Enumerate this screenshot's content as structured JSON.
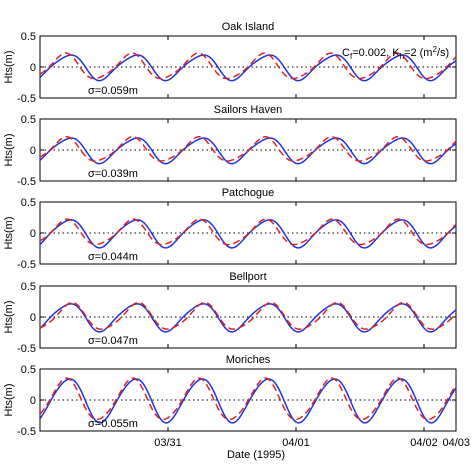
{
  "figure": {
    "xlabel": "Date (1995)",
    "annotation": {
      "c_prefix": "C",
      "c_sub": "f",
      "c_value": "=0.002, K",
      "k_sub": "h",
      "k_value": "=2 (m",
      "k_exp": "2",
      "k_unit": "/s)"
    }
  },
  "chart_data": [
    {
      "type": "line",
      "title": "Oak Island",
      "ylabel": "Hts(m)",
      "ylim": [
        -0.5,
        0.5
      ],
      "yticks": [
        "0.5",
        "0",
        "-0.5"
      ],
      "sigma": "σ=0.059m",
      "amp_obs": 0.2,
      "amp_model": 0.2,
      "model_phase_days": -0.03,
      "zero_reference": 0,
      "series": [
        {
          "style": "solid",
          "color": "#2233dd"
        },
        {
          "style": "dashed",
          "color": "#dd2222"
        }
      ]
    },
    {
      "type": "line",
      "title": "Sailors Haven",
      "ylabel": "Hts(m)",
      "ylim": [
        -0.5,
        0.5
      ],
      "yticks": [
        "0.5",
        "0",
        "-0.5"
      ],
      "sigma": "σ=0.039m",
      "amp_obs": 0.2,
      "amp_model": 0.19,
      "model_phase_days": -0.025,
      "zero_reference": 0,
      "series": [
        {
          "style": "solid",
          "color": "#2233dd"
        },
        {
          "style": "dashed",
          "color": "#dd2222"
        }
      ]
    },
    {
      "type": "line",
      "title": "Patchogue",
      "ylabel": "Hts(m)",
      "ylim": [
        -0.5,
        0.5
      ],
      "yticks": [
        "0.5",
        "0",
        "-0.5"
      ],
      "sigma": "σ=0.044m",
      "amp_obs": 0.22,
      "amp_model": 0.2,
      "model_phase_days": -0.02,
      "zero_reference": 0,
      "series": [
        {
          "style": "solid",
          "color": "#2233dd"
        },
        {
          "style": "dashed",
          "color": "#dd2222"
        }
      ]
    },
    {
      "type": "line",
      "title": "Bellport",
      "ylabel": "Hts(m)",
      "ylim": [
        -0.5,
        0.5
      ],
      "yticks": [
        "0.5",
        "0",
        "-0.5"
      ],
      "sigma": "σ=0.047m",
      "amp_obs": 0.22,
      "amp_model": 0.21,
      "model_phase_days": 0.02,
      "zero_reference": 0,
      "series": [
        {
          "style": "solid",
          "color": "#2233dd"
        },
        {
          "style": "dashed",
          "color": "#dd2222"
        }
      ]
    },
    {
      "type": "line",
      "title": "Moriches",
      "ylabel": "Hts(m)",
      "ylim": [
        -0.5,
        0.5
      ],
      "yticks": [
        "0.5",
        "0",
        "-0.5"
      ],
      "sigma": "σ=0.055m",
      "amp_obs": 0.35,
      "amp_model": 0.33,
      "model_phase_days": -0.02,
      "zero_reference": 0,
      "series": [
        {
          "style": "solid",
          "color": "#2233dd"
        },
        {
          "style": "dashed",
          "color": "#dd2222"
        }
      ]
    }
  ],
  "x_axis": {
    "range_days": [
      0,
      3.25
    ],
    "ticks": [
      {
        "label": "03/31",
        "day": 1.0
      },
      {
        "label": "04/01",
        "day": 2.0
      },
      {
        "label": "04/02",
        "day": 3.0
      },
      {
        "label": "04/03",
        "day": 4.0
      }
    ],
    "tide_period_days": 0.5175
  }
}
